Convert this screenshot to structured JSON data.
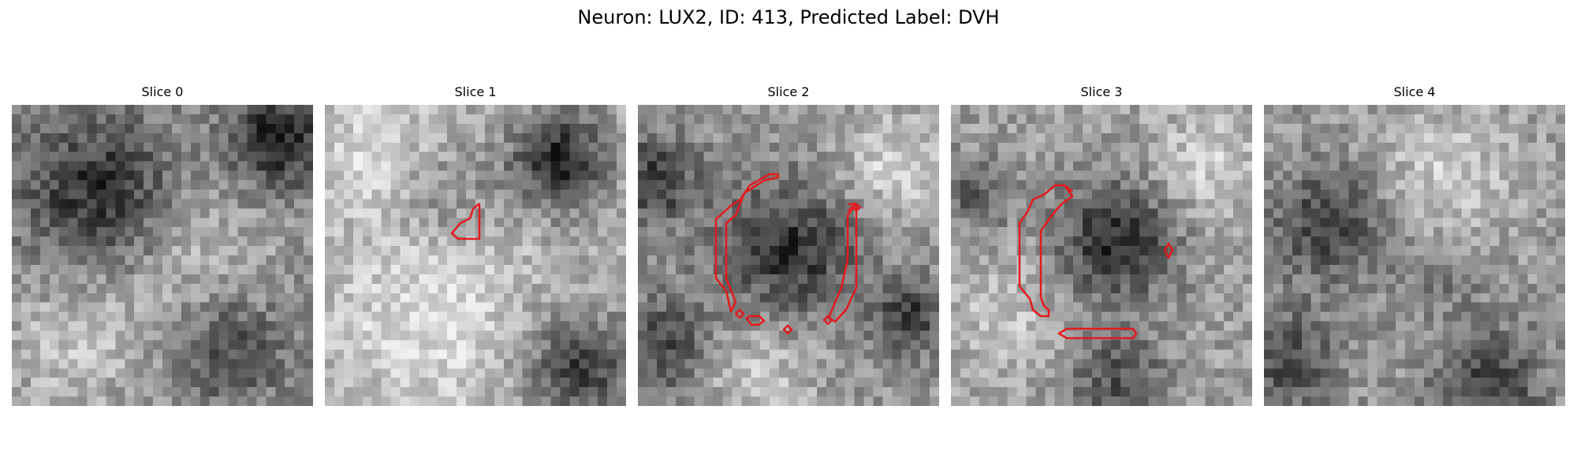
{
  "figure": {
    "title": "Neuron: LUX2, ID: 413, Predicted Label: DVH"
  },
  "panels": [
    {
      "title": "Slice 0",
      "overlay": "none"
    },
    {
      "title": "Slice 1",
      "overlay": "red contour"
    },
    {
      "title": "Slice 2",
      "overlay": "red contour"
    },
    {
      "title": "Slice 3",
      "overlay": "red contour"
    },
    {
      "title": "Slice 4",
      "overlay": "none"
    }
  ],
  "colors": {
    "contour": "#e31a1c",
    "background": "#ffffff",
    "colormap": "grayscale"
  }
}
